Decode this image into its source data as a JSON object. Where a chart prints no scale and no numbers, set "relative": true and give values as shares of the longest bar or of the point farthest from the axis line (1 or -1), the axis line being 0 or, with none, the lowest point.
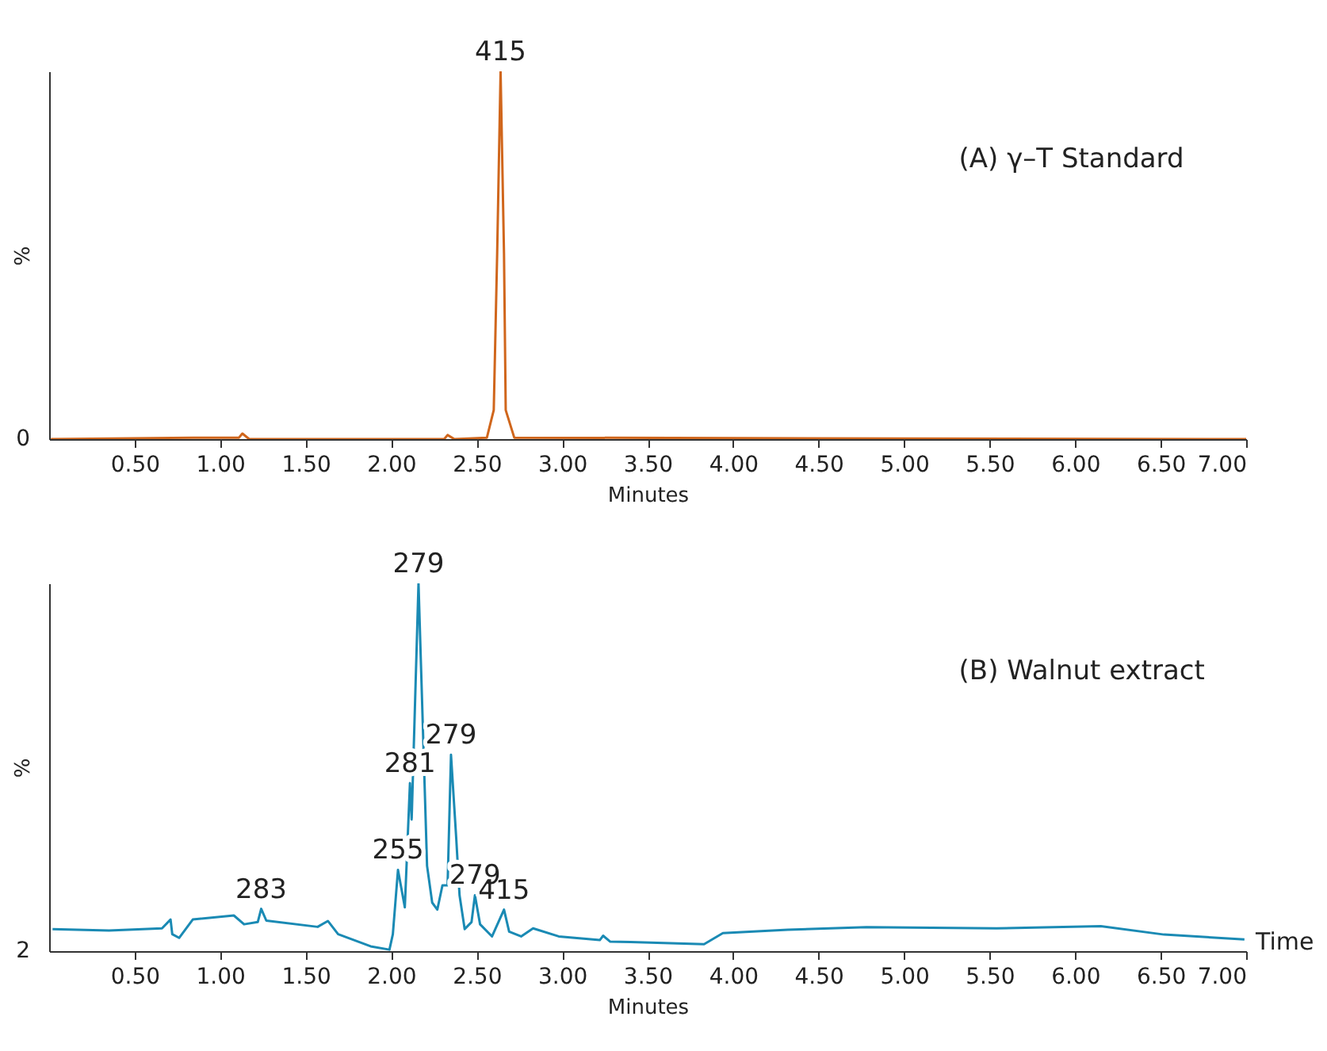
{
  "chart_data": [
    {
      "type": "line",
      "title": "(A) γ–T Standard",
      "xlabel": "Minutes",
      "ylabel": "%",
      "relative": true,
      "xlim": [
        0,
        7
      ],
      "grid": false,
      "xticks": [
        {
          "value": 0.5,
          "label": "0.50"
        },
        {
          "value": 1,
          "label": "1.00"
        },
        {
          "value": 1.5,
          "label": "1.50"
        },
        {
          "value": 2,
          "label": "2.00"
        },
        {
          "value": 2.5,
          "label": "2.50"
        },
        {
          "value": 3,
          "label": "3.00"
        },
        {
          "value": 3.5,
          "label": "3.50"
        },
        {
          "value": 4,
          "label": "4.00"
        },
        {
          "value": 4.5,
          "label": "4.50"
        },
        {
          "value": 5,
          "label": "5.00"
        },
        {
          "value": 5.5,
          "label": "5.50"
        },
        {
          "value": 6,
          "label": "6.00"
        },
        {
          "value": 6.5,
          "label": "6.50"
        },
        {
          "value": 7,
          "label": "7.00"
        }
      ],
      "series": [
        {
          "color": "#d0661c",
          "x": [
            0.01,
            0.84,
            1.11,
            1.13,
            1.17,
            2.31,
            2.33,
            2.37,
            2.56,
            2.6,
            2.62,
            2.64,
            2.66,
            2.67,
            2.72,
            7.0
          ],
          "values": [
            0,
            0.004,
            0.004,
            0.015,
            0,
            0,
            0.011,
            0,
            0.004,
            0.079,
            0.504,
            1,
            0.504,
            0.079,
            0.004,
            0
          ]
        }
      ],
      "annotations": [
        "0",
        {
          "text": "415",
          "x": 2.64,
          "y": 1
        }
      ]
    },
    {
      "type": "line",
      "title": "(B) Walnut extract",
      "xlabel": "Minutes",
      "ylabel": "%",
      "relative": true,
      "xlim": [
        0,
        7
      ],
      "grid": false,
      "xticks": [
        {
          "value": 0.5,
          "label": "0.50"
        },
        {
          "value": 1,
          "label": "1.00"
        },
        {
          "value": 1.5,
          "label": "1.50"
        },
        {
          "value": 2,
          "label": "2.00"
        },
        {
          "value": 2.5,
          "label": "2.50"
        },
        {
          "value": 3,
          "label": "3.00"
        },
        {
          "value": 3.5,
          "label": "3.50"
        },
        {
          "value": 4,
          "label": "4.00"
        },
        {
          "value": 4.5,
          "label": "4.50"
        },
        {
          "value": 5,
          "label": "5.00"
        },
        {
          "value": 5.5,
          "label": "5.50"
        },
        {
          "value": 6,
          "label": "6.00"
        },
        {
          "value": 6.5,
          "label": "6.50"
        },
        {
          "value": 7,
          "label": "7.00"
        }
      ],
      "series": [
        {
          "color": "#1a8ab4",
          "x": [
            0.02,
            0.35,
            0.66,
            0.71,
            0.72,
            0.76,
            0.84,
            1.08,
            1.14,
            1.22,
            1.24,
            1.27,
            1.57,
            1.63,
            1.69,
            1.88,
            1.99,
            2.01,
            2.04,
            2.08,
            2.11,
            2.12,
            2.16,
            2.21,
            2.24,
            2.27,
            2.3,
            2.33,
            2.35,
            2.38,
            2.4,
            2.43,
            2.47,
            2.49,
            2.52,
            2.59,
            2.66,
            2.69,
            2.76,
            2.83,
            2.98,
            3.22,
            3.24,
            3.28,
            3.4,
            3.83,
            3.94,
            4.32,
            4.78,
            5.54,
            6.15,
            6.52,
            6.99
          ],
          "values": [
            0.06,
            0.056,
            0.062,
            0.086,
            0.046,
            0.036,
            0.086,
            0.097,
            0.073,
            0.079,
            0.115,
            0.083,
            0.066,
            0.082,
            0.046,
            0.013,
            0.004,
            0.046,
            0.221,
            0.119,
            0.457,
            0.358,
            1,
            0.232,
            0.132,
            0.113,
            0.179,
            0.179,
            0.534,
            0.311,
            0.152,
            0.06,
            0.079,
            0.152,
            0.073,
            0.04,
            0.113,
            0.053,
            0.04,
            0.062,
            0.04,
            0.03,
            0.042,
            0.026,
            0.025,
            0.019,
            0.049,
            0.058,
            0.065,
            0.062,
            0.068,
            0.045,
            0.032
          ]
        }
      ],
      "annotations": [
        "2",
        "Time",
        {
          "text": "283",
          "x": 1.24,
          "y": 0.115
        },
        {
          "text": "255",
          "x": 2.04,
          "y": 0.221
        },
        {
          "text": "281",
          "x": 2.11,
          "y": 0.457
        },
        {
          "text": "279",
          "x": 2.16,
          "y": 1
        },
        {
          "text": "279",
          "x": 2.35,
          "y": 0.534
        },
        {
          "text": "279",
          "x": 2.49,
          "y": 0.152
        },
        {
          "text": "415",
          "x": 2.66,
          "y": 0.113
        }
      ]
    }
  ]
}
